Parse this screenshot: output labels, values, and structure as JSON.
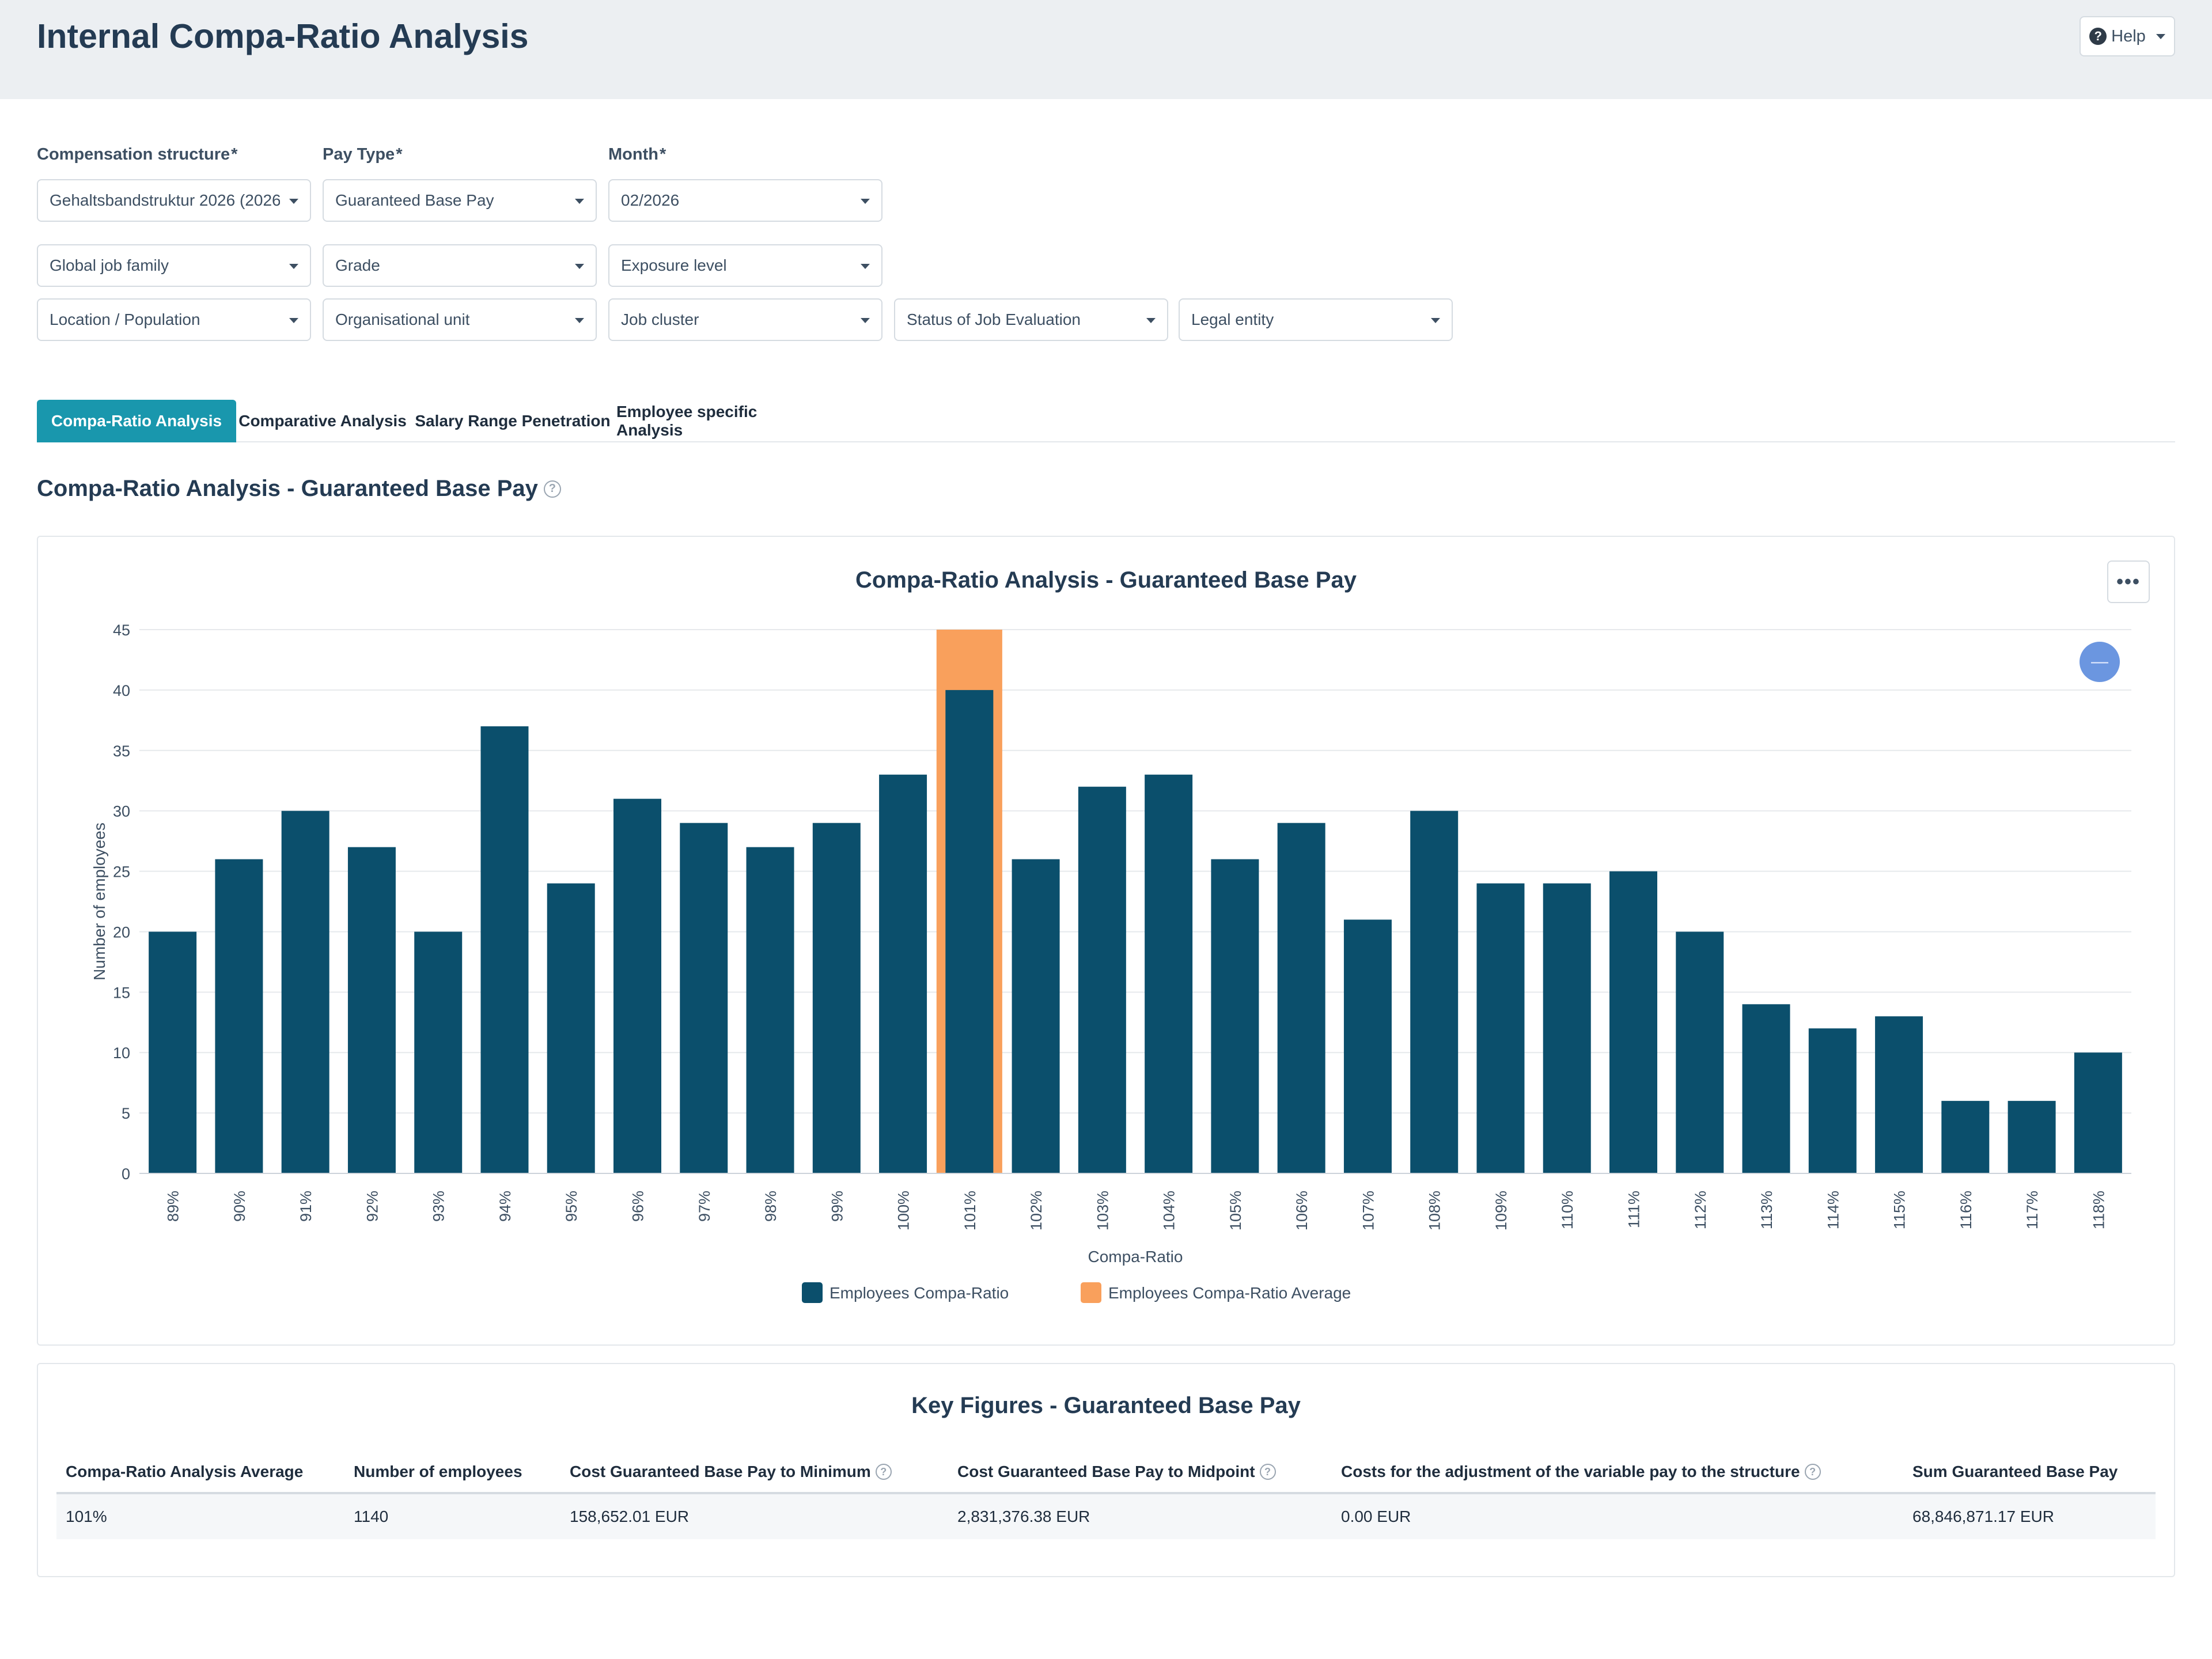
{
  "header": {
    "title": "Internal Compa-Ratio Analysis",
    "help_label": "Help"
  },
  "filters": {
    "compensation_structure": {
      "label": "Compensation structure",
      "value": "Gehaltsbandstruktur 2026 (2026_"
    },
    "pay_type": {
      "label": "Pay Type",
      "value": "Guaranteed Base Pay"
    },
    "month": {
      "label": "Month",
      "value": "02/2026"
    },
    "required_mark": "*",
    "row2": [
      "Global job family",
      "Grade",
      "Exposure level"
    ],
    "row3": [
      "Location / Population",
      "Organisational unit",
      "Job cluster",
      "Status of Job Evaluation",
      "Legal entity"
    ]
  },
  "tabs": [
    {
      "label": "Compa-Ratio Analysis",
      "active": true
    },
    {
      "label": "Comparative Analysis",
      "active": false
    },
    {
      "label": "Salary Range Penetration",
      "active": false
    },
    {
      "label": "Employee specific Analysis",
      "active": false
    }
  ],
  "section": {
    "title": "Compa-Ratio Analysis - Guaranteed Base Pay"
  },
  "menu_glyph": "•••",
  "chart_data": {
    "type": "bar",
    "title": "Compa-Ratio Analysis - Guaranteed Base Pay",
    "xlabel": "Compa-Ratio",
    "ylabel": "Number of employees",
    "ylim": [
      0,
      45
    ],
    "yticks": [
      0,
      5,
      10,
      15,
      20,
      25,
      30,
      35,
      40,
      45
    ],
    "grid": true,
    "legend_position": "bottom-center",
    "categories": [
      "89%",
      "90%",
      "91%",
      "92%",
      "93%",
      "94%",
      "95%",
      "96%",
      "97%",
      "98%",
      "99%",
      "100%",
      "101%",
      "102%",
      "103%",
      "104%",
      "105%",
      "106%",
      "107%",
      "108%",
      "109%",
      "110%",
      "111%",
      "112%",
      "113%",
      "114%",
      "115%",
      "116%",
      "117%",
      "118%"
    ],
    "series": [
      {
        "name": "Employees Compa-Ratio",
        "color": "#0b4f6c",
        "values": [
          20,
          26,
          30,
          27,
          20,
          37,
          24,
          31,
          29,
          27,
          29,
          33,
          40,
          26,
          32,
          33,
          26,
          29,
          21,
          30,
          24,
          24,
          25,
          20,
          14,
          12,
          13,
          6,
          6,
          10
        ]
      },
      {
        "name": "Employees Compa-Ratio Average",
        "color": "#f9a05c",
        "category": "101%",
        "value": 45
      }
    ]
  },
  "key_figures": {
    "title": "Key Figures - Guaranteed Base Pay",
    "columns": [
      {
        "label": "Compa-Ratio Analysis Average",
        "info": false
      },
      {
        "label": "Number of employees",
        "info": false
      },
      {
        "label": "Cost Guaranteed Base Pay to Minimum",
        "info": true
      },
      {
        "label": "Cost Guaranteed Base Pay to Midpoint",
        "info": true
      },
      {
        "label": "Costs for the adjustment of the variable pay to the structure",
        "info": true
      },
      {
        "label": "Sum Guaranteed Base Pay",
        "info": false
      }
    ],
    "row": [
      "101%",
      "1140",
      "158,652.01 EUR",
      "2,831,376.38 EUR",
      "0.00 EUR",
      "68,846,871.17 EUR"
    ]
  }
}
